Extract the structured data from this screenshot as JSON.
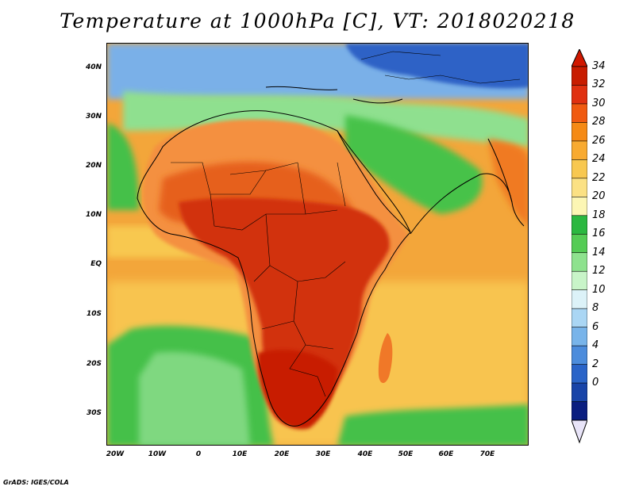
{
  "title": "Temperature at 1000hPa [C], VT: 2018020218",
  "credit": "GrADS: IGES/COLA",
  "map": {
    "lon_range": [
      -25,
      80
    ],
    "lat_range": [
      -38,
      45
    ],
    "lat_ticks": [
      "40N",
      "30N",
      "20N",
      "10N",
      "EQ",
      "10S",
      "20S",
      "30S"
    ],
    "lon_ticks": [
      "20W",
      "10W",
      "0",
      "10E",
      "20E",
      "30E",
      "40E",
      "50E",
      "60E",
      "70E"
    ]
  },
  "colorbar": {
    "labels": [
      "34",
      "32",
      "30",
      "28",
      "26",
      "24",
      "22",
      "20",
      "18",
      "16",
      "14",
      "12",
      "10",
      "8",
      "6",
      "4",
      "2",
      "0"
    ],
    "colors": [
      "#c81c00",
      "#e03010",
      "#f05a10",
      "#f58a15",
      "#f8aa30",
      "#f8c850",
      "#fbe184",
      "#fcf6b4",
      "#2bb840",
      "#55cc55",
      "#8ee28e",
      "#c8f4c8",
      "#dcf2f8",
      "#aad6f4",
      "#78b4ea",
      "#4c8cdc",
      "#2a64c8",
      "#1844a8",
      "#0a1e80"
    ],
    "top_arrow": "#d01800",
    "bottom_arrow": "#e8e4f8"
  },
  "regions": {
    "ocean_warm": "#f0a030",
    "ocean_cool": "#f8c850",
    "sahara_warm": "#e06020",
    "hot_core": "#d02a0a",
    "green_low": "#3cc040",
    "green_mid": "#7ad87a",
    "blue_high": "#7aaee8",
    "blue_deep": "#2e64c8"
  }
}
